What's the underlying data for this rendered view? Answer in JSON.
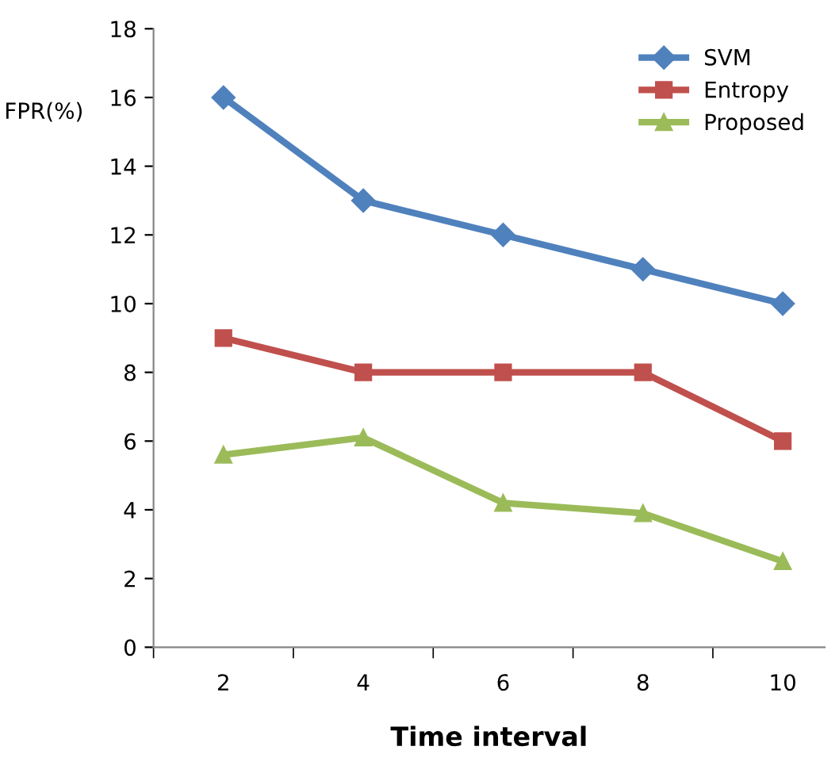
{
  "chart_data": {
    "type": "line",
    "xlabel": "Time interval",
    "ylabel": "FPR(%)",
    "categories": [
      "2",
      "4",
      "6",
      "8",
      "10"
    ],
    "series": [
      {
        "name": "SVM",
        "color": "#4f81bd",
        "marker": "diamond",
        "values": [
          16,
          13,
          12,
          11,
          10
        ]
      },
      {
        "name": "Entropy",
        "color": "#c0504d",
        "marker": "square",
        "values": [
          9,
          8,
          8,
          8,
          6
        ]
      },
      {
        "name": "Proposed",
        "color": "#9bbb59",
        "marker": "triangle",
        "values": [
          5.6,
          6.1,
          4.2,
          3.9,
          2.5
        ]
      }
    ],
    "ylim": [
      0,
      18
    ],
    "yticks": [
      0,
      2,
      4,
      6,
      8,
      10,
      12,
      14,
      16,
      18
    ],
    "grid": false,
    "legend": "top right",
    "line_style": "solid"
  }
}
